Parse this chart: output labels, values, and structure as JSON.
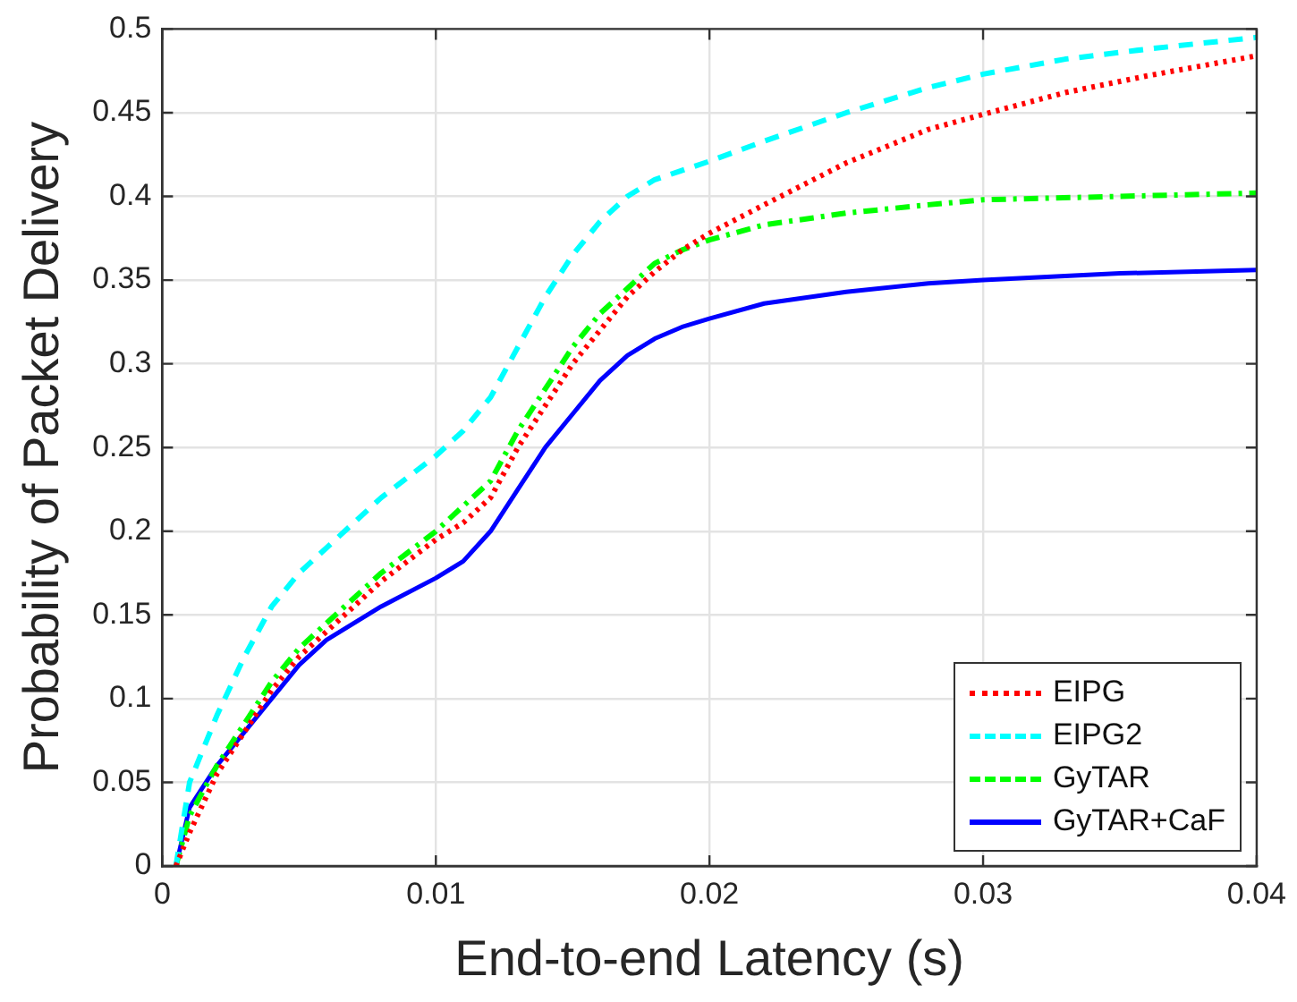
{
  "chart_data": {
    "type": "line",
    "xlabel": "End-to-end Latency (s)",
    "ylabel": "Probability of Packet Delivery",
    "xlim": [
      0,
      0.04
    ],
    "xticks": [
      0,
      0.01,
      0.02,
      0.03,
      0.04
    ],
    "ylim": [
      0,
      0.5
    ],
    "yticks": [
      0,
      0.05,
      0.1,
      0.15,
      0.2,
      0.25,
      0.3,
      0.35,
      0.4,
      0.45,
      0.5
    ],
    "grid": true,
    "legend": "bottom right",
    "marker": "none",
    "series": [
      {
        "name": "EIPG",
        "color": "#ff0000",
        "line_style": "dotted",
        "x": [
          0.0005,
          0.001,
          0.002,
          0.003,
          0.004,
          0.005,
          0.006,
          0.008,
          0.01,
          0.011,
          0.012,
          0.013,
          0.014,
          0.015,
          0.016,
          0.017,
          0.018,
          0.019,
          0.02,
          0.022,
          0.025,
          0.028,
          0.03,
          0.033,
          0.036,
          0.04
        ],
        "values": [
          0,
          0.02,
          0.055,
          0.08,
          0.105,
          0.125,
          0.14,
          0.17,
          0.195,
          0.205,
          0.22,
          0.25,
          0.275,
          0.3,
          0.32,
          0.34,
          0.355,
          0.368,
          0.378,
          0.395,
          0.42,
          0.44,
          0.449,
          0.462,
          0.472,
          0.484
        ]
      },
      {
        "name": "EIPG2",
        "color": "#00ffff",
        "line_style": "dashed",
        "x": [
          0.0005,
          0.001,
          0.002,
          0.003,
          0.004,
          0.005,
          0.006,
          0.008,
          0.01,
          0.011,
          0.012,
          0.013,
          0.014,
          0.015,
          0.016,
          0.017,
          0.018,
          0.02,
          0.022,
          0.025,
          0.028,
          0.03,
          0.033,
          0.036,
          0.04
        ],
        "values": [
          0,
          0.05,
          0.09,
          0.125,
          0.155,
          0.175,
          0.19,
          0.22,
          0.245,
          0.26,
          0.28,
          0.31,
          0.34,
          0.365,
          0.385,
          0.4,
          0.41,
          0.421,
          0.433,
          0.45,
          0.465,
          0.473,
          0.482,
          0.488,
          0.495
        ]
      },
      {
        "name": "GyTAR",
        "color": "#00ff00",
        "line_style": "dashdot",
        "x": [
          0.0005,
          0.001,
          0.002,
          0.003,
          0.004,
          0.005,
          0.006,
          0.008,
          0.01,
          0.011,
          0.012,
          0.013,
          0.014,
          0.015,
          0.016,
          0.017,
          0.018,
          0.019,
          0.02,
          0.022,
          0.025,
          0.028,
          0.03,
          0.035,
          0.04
        ],
        "values": [
          0,
          0.03,
          0.06,
          0.085,
          0.11,
          0.13,
          0.145,
          0.175,
          0.2,
          0.215,
          0.23,
          0.26,
          0.285,
          0.31,
          0.33,
          0.345,
          0.36,
          0.368,
          0.374,
          0.383,
          0.39,
          0.395,
          0.398,
          0.4,
          0.402
        ]
      },
      {
        "name": "GyTAR+CaF",
        "color": "#0000ff",
        "line_style": "solid",
        "x": [
          0.0005,
          0.001,
          0.002,
          0.003,
          0.004,
          0.005,
          0.006,
          0.008,
          0.01,
          0.011,
          0.012,
          0.013,
          0.014,
          0.015,
          0.016,
          0.017,
          0.018,
          0.019,
          0.02,
          0.022,
          0.025,
          0.028,
          0.03,
          0.035,
          0.04
        ],
        "values": [
          0,
          0.035,
          0.06,
          0.08,
          0.1,
          0.12,
          0.135,
          0.155,
          0.172,
          0.182,
          0.2,
          0.225,
          0.25,
          0.27,
          0.29,
          0.305,
          0.315,
          0.322,
          0.327,
          0.336,
          0.343,
          0.348,
          0.35,
          0.354,
          0.356
        ]
      }
    ]
  }
}
